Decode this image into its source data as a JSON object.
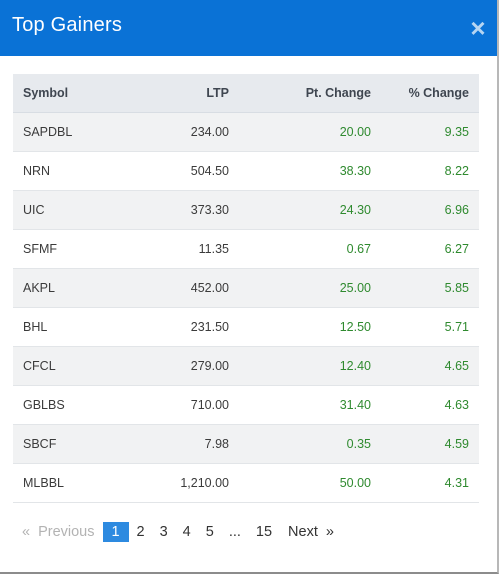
{
  "modal": {
    "title": "Top Gainers",
    "close_label": "×"
  },
  "table": {
    "headers": {
      "symbol": "Symbol",
      "ltp": "LTP",
      "pt_change": "Pt. Change",
      "pct_change": "% Change"
    },
    "rows": [
      {
        "symbol": "SAPDBL",
        "ltp": "234.00",
        "pt_change": "20.00",
        "pct_change": "9.35"
      },
      {
        "symbol": "NRN",
        "ltp": "504.50",
        "pt_change": "38.30",
        "pct_change": "8.22"
      },
      {
        "symbol": "UIC",
        "ltp": "373.30",
        "pt_change": "24.30",
        "pct_change": "6.96"
      },
      {
        "symbol": "SFMF",
        "ltp": "11.35",
        "pt_change": "0.67",
        "pct_change": "6.27"
      },
      {
        "symbol": "AKPL",
        "ltp": "452.00",
        "pt_change": "25.00",
        "pct_change": "5.85"
      },
      {
        "symbol": "BHL",
        "ltp": "231.50",
        "pt_change": "12.50",
        "pct_change": "5.71"
      },
      {
        "symbol": "CFCL",
        "ltp": "279.00",
        "pt_change": "12.40",
        "pct_change": "4.65"
      },
      {
        "symbol": "GBLBS",
        "ltp": "710.00",
        "pt_change": "31.40",
        "pct_change": "4.63"
      },
      {
        "symbol": "SBCF",
        "ltp": "7.98",
        "pt_change": "0.35",
        "pct_change": "4.59"
      },
      {
        "symbol": "MLBBL",
        "ltp": "1,210.00",
        "pt_change": "50.00",
        "pct_change": "4.31"
      }
    ],
    "colors": {
      "positive": "#2f8a2f",
      "header_bg": "#e7eaee"
    }
  },
  "pagination": {
    "prev_arrow": "«",
    "prev_label": "Previous",
    "pages": [
      "1",
      "2",
      "3",
      "4",
      "5",
      "...",
      "15"
    ],
    "active_page": "1",
    "next_label": "Next",
    "next_arrow": "»"
  },
  "theme": {
    "header_color": "#0a72d6",
    "active_page_color": "#2d8ae0"
  }
}
